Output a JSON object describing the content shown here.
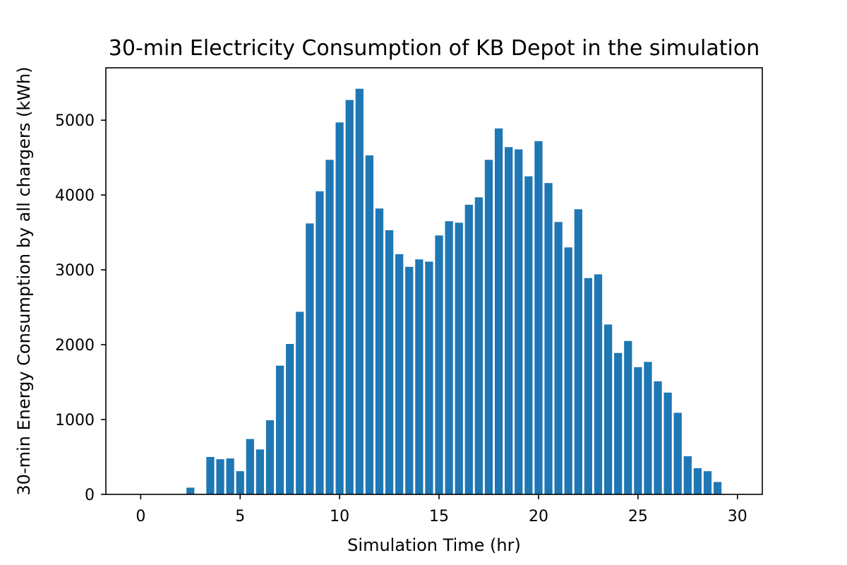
{
  "chart_data": {
    "type": "bar",
    "title": "30-min Electricity Consumption of KB Depot in the simulation",
    "xlabel": "Simulation Time (hr)",
    "ylabel": "30-min Energy Consumption by all chargers (kWh)",
    "xlim": [
      -1.75,
      31.25
    ],
    "ylim": [
      0,
      5700
    ],
    "xticks": [
      0,
      5,
      10,
      15,
      20,
      25,
      30
    ],
    "yticks": [
      0,
      1000,
      2000,
      3000,
      4000,
      5000
    ],
    "bar_width_hr": 0.4,
    "color": "#1f77b4",
    "grid": false,
    "x": [
      0,
      0.5,
      1,
      1.5,
      2,
      2.5,
      3,
      3.5,
      4,
      4.5,
      5,
      5.5,
      6,
      6.5,
      7,
      7.5,
      8,
      8.5,
      9,
      9.5,
      10,
      10.5,
      11,
      11.5,
      12,
      12.5,
      13,
      13.5,
      14,
      14.5,
      15,
      15.5,
      16,
      16.5,
      17,
      17.5,
      18,
      18.5,
      19,
      19.5,
      20,
      20.5,
      21,
      21.5,
      22,
      22.5,
      23,
      23.5,
      24,
      24.5,
      25,
      25.5,
      26,
      26.5,
      27,
      27.5,
      28,
      28.5,
      29,
      29.5,
      30
    ],
    "values": [
      0,
      0,
      0,
      0,
      0,
      90,
      0,
      500,
      470,
      480,
      310,
      740,
      600,
      990,
      1720,
      2010,
      2440,
      3620,
      4050,
      4470,
      4970,
      5270,
      5420,
      4530,
      3820,
      3530,
      3210,
      3040,
      3140,
      3110,
      3460,
      3650,
      3630,
      3870,
      3970,
      4470,
      4890,
      4640,
      4610,
      4250,
      4720,
      4160,
      3640,
      3300,
      3810,
      2890,
      2940,
      2270,
      1890,
      2050,
      1700,
      1770,
      1510,
      1360,
      1090,
      510,
      350,
      310,
      165,
      0,
      0
    ]
  }
}
